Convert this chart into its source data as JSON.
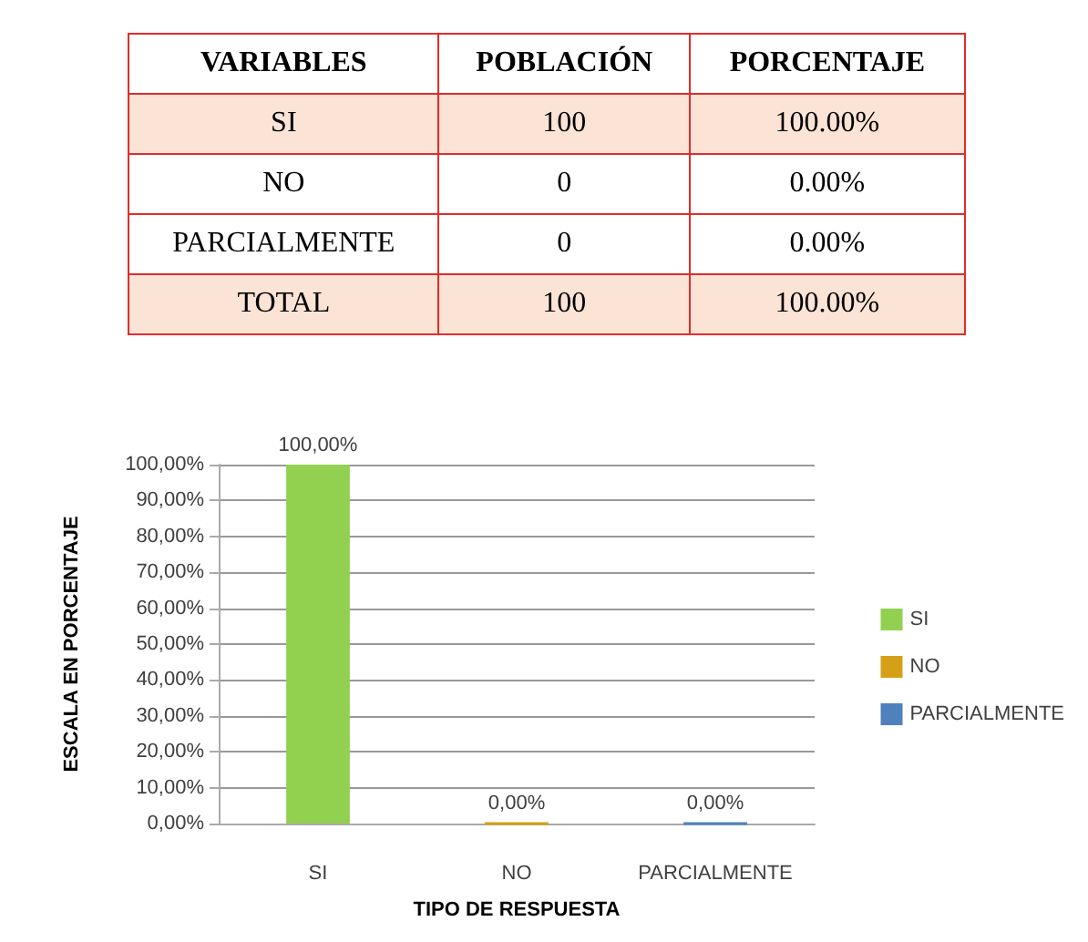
{
  "chart_data": [
    {
      "type": "other",
      "annotations": [
        "VARIABLES",
        "POBLACIÓN",
        "PORCENTAJE",
        "SI",
        "100",
        "100.00%",
        "NO",
        "0",
        "0.00%",
        "PARCIALMENTE",
        "0",
        "0.00%",
        "TOTAL",
        "100",
        "100.00%"
      ]
    },
    {
      "type": "bar",
      "xlabel": "TIPO DE RESPUESTA",
      "ylabel": "ESCALA EN PORCENTAJE",
      "categories": [
        "SI",
        "NO",
        "PARCIALMENTE"
      ],
      "series": [
        {
          "name": "SI",
          "color": "#92d050",
          "values": [
            100,
            null,
            null
          ],
          "value_labels": [
            "100,00%",
            null,
            null
          ]
        },
        {
          "name": "NO",
          "color": "#d4a017",
          "values": [
            null,
            0,
            null
          ],
          "value_labels": [
            null,
            "0,00%",
            null
          ]
        },
        {
          "name": "PARCIALMENTE",
          "color": "#4f81bd",
          "values": [
            null,
            null,
            0
          ],
          "value_labels": [
            null,
            null,
            "0,00%"
          ]
        }
      ],
      "ylim": [
        0,
        100
      ],
      "yticks": [
        {
          "value": 0,
          "label": "0,00%"
        },
        {
          "value": 10,
          "label": "10,00%"
        },
        {
          "value": 20,
          "label": "20,00%"
        },
        {
          "value": 30,
          "label": "30,00%"
        },
        {
          "value": 40,
          "label": "40,00%"
        },
        {
          "value": 50,
          "label": "50,00%"
        },
        {
          "value": 60,
          "label": "60,00%"
        },
        {
          "value": 70,
          "label": "70,00%"
        },
        {
          "value": 80,
          "label": "80,00%"
        },
        {
          "value": 90,
          "label": "90,00%"
        },
        {
          "value": 100,
          "label": "100,00%"
        }
      ],
      "grid": "y",
      "legend": "right"
    }
  ]
}
